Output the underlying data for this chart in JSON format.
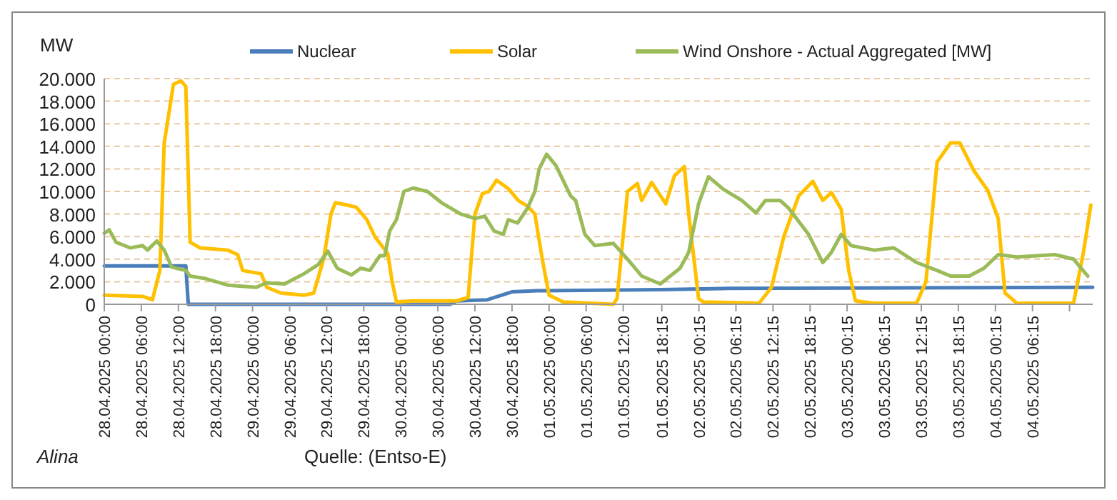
{
  "chart_data": {
    "type": "line",
    "ylabel": "MW",
    "legend": "top",
    "grid": "y",
    "line_style": "solid",
    "marker": "none",
    "annotations": [
      "Alina",
      "Quelle: (Entso-E)"
    ],
    "xlim": [
      "2025-04-28T00:00",
      "2025-05-04T16:00"
    ],
    "xticks": [
      {
        "value": "2025-04-28T00:00",
        "label": "28.04.2025 00:00"
      },
      {
        "value": "2025-04-28T06:00",
        "label": "28.04.2025 06:00"
      },
      {
        "value": "2025-04-28T12:00",
        "label": "28.04.2025 12:00"
      },
      {
        "value": "2025-04-28T18:00",
        "label": "28.04.2025 18:00"
      },
      {
        "value": "2025-04-29T00:00",
        "label": "29.04.2025 00:00"
      },
      {
        "value": "2025-04-29T06:00",
        "label": "29.04.2025 06:00"
      },
      {
        "value": "2025-04-29T12:00",
        "label": "29.04.2025 12:00"
      },
      {
        "value": "2025-04-29T18:00",
        "label": "29.04.2025 18:00"
      },
      {
        "value": "2025-04-30T00:00",
        "label": "30.04.2025 00:00"
      },
      {
        "value": "2025-04-30T06:00",
        "label": "30.04.2025 06:00"
      },
      {
        "value": "2025-04-30T12:00",
        "label": "30.04.2025 12:00"
      },
      {
        "value": "2025-04-30T18:00",
        "label": "30.04.2025 18:00"
      },
      {
        "value": "2025-05-01T00:00",
        "label": "01.05.2025 00:00"
      },
      {
        "value": "2025-05-01T06:00",
        "label": "01.05.2025 06:00"
      },
      {
        "value": "2025-05-01T12:00",
        "label": "01.05.2025 12:00"
      },
      {
        "value": "2025-05-01T18:15",
        "label": "01.05.2025 18:15"
      },
      {
        "value": "2025-05-02T00:15",
        "label": "02.05.2025 00:15"
      },
      {
        "value": "2025-05-02T06:15",
        "label": "02.05.2025 06:15"
      },
      {
        "value": "2025-05-02T12:15",
        "label": "02.05.2025 12:15"
      },
      {
        "value": "2025-05-02T18:15",
        "label": "02.05.2025 18:15"
      },
      {
        "value": "2025-05-03T00:15",
        "label": "03.05.2025 00:15"
      },
      {
        "value": "2025-05-03T06:15",
        "label": "03.05.2025 06:15"
      },
      {
        "value": "2025-05-03T12:15",
        "label": "03.05.2025 12:15"
      },
      {
        "value": "2025-05-03T18:15",
        "label": "03.05.2025 18:15"
      },
      {
        "value": "2025-05-04T00:15",
        "label": "04.05.2025 00:15"
      },
      {
        "value": "2025-05-04T06:15",
        "label": "04.05.2025 06:15"
      },
      {
        "value": "2025-05-04T12:15",
        "label": null
      }
    ],
    "ylim": [
      0,
      20000
    ],
    "yticks": [
      {
        "value": 0,
        "label": "0"
      },
      {
        "value": 2000,
        "label": "2.000"
      },
      {
        "value": 4000,
        "label": "4.000"
      },
      {
        "value": 6000,
        "label": "6.000"
      },
      {
        "value": 8000,
        "label": "8.000"
      },
      {
        "value": 10000,
        "label": "10.000"
      },
      {
        "value": 12000,
        "label": "12.000"
      },
      {
        "value": 14000,
        "label": "14.000"
      },
      {
        "value": 16000,
        "label": "16.000"
      },
      {
        "value": 18000,
        "label": "18.000"
      },
      {
        "value": 20000,
        "label": "20.000"
      }
    ],
    "series": [
      {
        "name": "Nuclear",
        "color": "#4a7ebb",
        "x": [
          "2025-04-28T00:00",
          "2025-04-28T13:12",
          "2025-04-28T13:36",
          "2025-04-30T08:00",
          "2025-04-30T09:00",
          "2025-04-30T14:00",
          "2025-04-30T18:00",
          "2025-04-30T22:00",
          "2025-05-01T18:00",
          "2025-05-02T04:00",
          "2025-05-04T16:00"
        ],
        "values": [
          3400,
          3400,
          0,
          0,
          300,
          400,
          1100,
          1200,
          1300,
          1400,
          1500
        ]
      },
      {
        "name": "Solar",
        "color": "#ffc000",
        "x": [
          "2025-04-28T00:00",
          "2025-04-28T06:12",
          "2025-04-28T07:48",
          "2025-04-28T09:00",
          "2025-04-28T09:42",
          "2025-04-28T11:12",
          "2025-04-28T12:24",
          "2025-04-28T13:12",
          "2025-04-28T13:54",
          "2025-04-28T15:30",
          "2025-04-28T20:00",
          "2025-04-28T21:36",
          "2025-04-28T22:24",
          "2025-04-29T01:24",
          "2025-04-29T02:18",
          "2025-04-29T04:36",
          "2025-04-29T08:18",
          "2025-04-29T09:54",
          "2025-04-29T11:30",
          "2025-04-29T12:42",
          "2025-04-29T13:24",
          "2025-04-29T15:18",
          "2025-04-29T16:48",
          "2025-04-29T18:30",
          "2025-04-29T19:48",
          "2025-04-29T21:54",
          "2025-04-29T22:36",
          "2025-04-29T23:18",
          "2025-04-30T02:00",
          "2025-04-30T09:00",
          "2025-04-30T10:54",
          "2025-04-30T12:00",
          "2025-04-30T13:12",
          "2025-04-30T14:18",
          "2025-04-30T15:30",
          "2025-04-30T17:30",
          "2025-04-30T19:00",
          "2025-04-30T20:30",
          "2025-04-30T21:42",
          "2025-04-30T22:54",
          "2025-05-01T00:00",
          "2025-05-01T02:18",
          "2025-05-01T10:24",
          "2025-05-01T11:00",
          "2025-05-01T12:42",
          "2025-05-01T14:18",
          "2025-05-01T15:00",
          "2025-05-01T16:36",
          "2025-05-01T18:54",
          "2025-05-01T20:18",
          "2025-05-01T21:54",
          "2025-05-01T22:36",
          "2025-05-02T00:12",
          "2025-05-02T01:00",
          "2025-05-02T10:00",
          "2025-05-02T12:00",
          "2025-05-02T14:00",
          "2025-05-02T16:24",
          "2025-05-02T18:42",
          "2025-05-02T20:18",
          "2025-05-02T21:42",
          "2025-05-02T23:18",
          "2025-05-03T00:30",
          "2025-05-03T01:36",
          "2025-05-03T04:36",
          "2025-05-03T11:30",
          "2025-05-03T13:00",
          "2025-05-03T14:48",
          "2025-05-03T17:00",
          "2025-05-03T18:30",
          "2025-05-03T20:48",
          "2025-05-03T23:00",
          "2025-05-04T00:42",
          "2025-05-04T01:48",
          "2025-05-04T03:42",
          "2025-05-04T12:54",
          "2025-05-04T14:30",
          "2025-05-04T15:42"
        ],
        "values": [
          800,
          700,
          400,
          3000,
          14300,
          19500,
          19800,
          19300,
          5500,
          5000,
          4800,
          4400,
          3000,
          2700,
          1500,
          1000,
          800,
          1000,
          4000,
          8000,
          9000,
          8800,
          8600,
          7500,
          6000,
          4500,
          2000,
          200,
          300,
          300,
          600,
          8000,
          9800,
          10000,
          11000,
          10200,
          9200,
          8700,
          8000,
          4000,
          800,
          200,
          0,
          500,
          10000,
          10700,
          9200,
          10800,
          8900,
          11400,
          12200,
          8000,
          500,
          200,
          100,
          1500,
          6000,
          9600,
          10900,
          9200,
          9900,
          8400,
          3000,
          300,
          100,
          100,
          2000,
          12600,
          14300,
          14300,
          11800,
          10100,
          7600,
          1000,
          100,
          100,
          4600,
          8800
        ]
      },
      {
        "name": "Wind Onshore - Actual Aggregated [MW]",
        "color": "#9bbb59",
        "x": [
          "2025-04-28T00:00",
          "2025-04-28T00:48",
          "2025-04-28T01:54",
          "2025-04-28T04:12",
          "2025-04-28T06:12",
          "2025-04-28T07:00",
          "2025-04-28T08:30",
          "2025-04-28T09:42",
          "2025-04-28T10:54",
          "2025-04-28T13:12",
          "2025-04-28T13:54",
          "2025-04-28T16:12",
          "2025-04-28T20:00",
          "2025-04-29T00:36",
          "2025-04-29T02:12",
          "2025-04-29T05:12",
          "2025-04-29T08:18",
          "2025-04-29T10:36",
          "2025-04-29T12:12",
          "2025-04-29T13:42",
          "2025-04-29T16:00",
          "2025-04-29T17:30",
          "2025-04-29T19:00",
          "2025-04-29T20:36",
          "2025-04-29T21:24",
          "2025-04-29T22:12",
          "2025-04-29T23:18",
          "2025-04-30T00:30",
          "2025-04-30T02:00",
          "2025-04-30T04:18",
          "2025-04-30T06:36",
          "2025-04-30T09:42",
          "2025-04-30T12:00",
          "2025-04-30T13:36",
          "2025-04-30T15:06",
          "2025-04-30T16:36",
          "2025-04-30T17:24",
          "2025-04-30T18:54",
          "2025-04-30T20:30",
          "2025-04-30T21:42",
          "2025-04-30T22:24",
          "2025-04-30T23:36",
          "2025-05-01T01:06",
          "2025-05-01T03:30",
          "2025-05-01T04:18",
          "2025-05-01T05:48",
          "2025-05-01T07:24",
          "2025-05-01T10:24",
          "2025-05-01T12:42",
          "2025-05-01T15:00",
          "2025-05-01T18:00",
          "2025-05-01T21:12",
          "2025-05-01T22:36",
          "2025-05-02T00:12",
          "2025-05-02T01:48",
          "2025-05-02T04:12",
          "2025-05-02T07:12",
          "2025-05-02T09:30",
          "2025-05-02T11:00",
          "2025-05-02T13:24",
          "2025-05-02T14:48",
          "2025-05-02T18:00",
          "2025-05-02T20:18",
          "2025-05-02T21:42",
          "2025-05-02T23:18",
          "2025-05-03T00:54",
          "2025-05-03T04:36",
          "2025-05-03T07:48",
          "2025-05-03T11:30",
          "2025-05-03T14:48",
          "2025-05-03T17:00",
          "2025-05-03T20:00",
          "2025-05-03T22:24",
          "2025-05-04T00:42",
          "2025-05-04T03:42",
          "2025-05-04T09:54",
          "2025-05-04T12:54",
          "2025-05-04T15:12"
        ],
        "values": [
          6300,
          6600,
          5500,
          5000,
          5200,
          4800,
          5600,
          4800,
          3300,
          3000,
          2500,
          2300,
          1700,
          1500,
          1900,
          1800,
          2700,
          3500,
          4700,
          3200,
          2600,
          3200,
          3000,
          4300,
          4300,
          6500,
          7500,
          10000,
          10300,
          10000,
          9000,
          8000,
          7600,
          7800,
          6500,
          6200,
          7500,
          7200,
          8500,
          10000,
          12000,
          13300,
          12300,
          9600,
          9200,
          6200,
          5200,
          5400,
          4000,
          2500,
          1800,
          3200,
          4600,
          8900,
          11300,
          10200,
          9200,
          8100,
          9200,
          9200,
          8500,
          6200,
          3700,
          4600,
          6200,
          5200,
          4800,
          5000,
          3700,
          3000,
          2500,
          2500,
          3200,
          4400,
          4200,
          4400,
          4000,
          2500
        ]
      }
    ]
  }
}
